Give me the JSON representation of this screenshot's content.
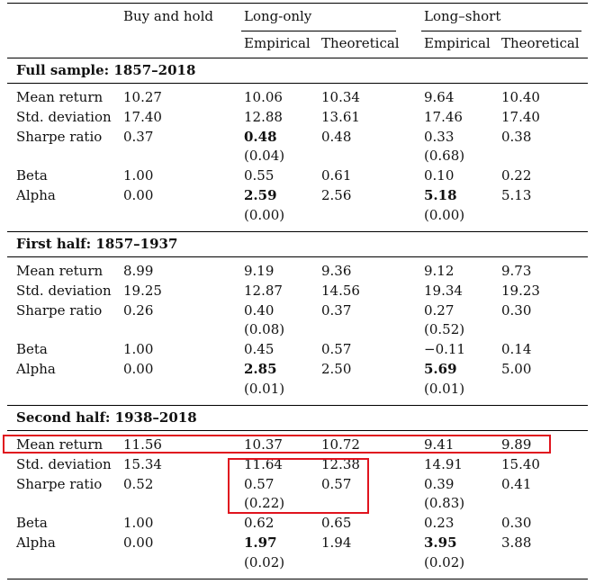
{
  "header": {
    "buy_hold": "Buy and hold",
    "long_only": "Long-only",
    "long_short": "Long–short",
    "empirical": "Empirical",
    "theoretical": "Theoretical"
  },
  "sections": [
    {
      "title": "Full sample: 1857–2018",
      "rows": [
        [
          "Mean return",
          "10.27",
          "10.06",
          "10.34",
          "9.64",
          "10.40"
        ],
        [
          "Std. deviation",
          "17.40",
          "12.88",
          "13.61",
          "17.46",
          "17.40"
        ],
        [
          "Sharpe ratio",
          "0.37",
          "0.48",
          "0.48",
          "0.33",
          "0.38"
        ],
        [
          "",
          "",
          "(0.04)",
          "",
          "(0.68)",
          ""
        ],
        [
          "Beta",
          "1.00",
          "0.55",
          "0.61",
          "0.10",
          "0.22"
        ],
        [
          "Alpha",
          "0.00",
          "2.59",
          "2.56",
          "5.18",
          "5.13"
        ],
        [
          "",
          "",
          "(0.00)",
          "",
          "(0.00)",
          ""
        ]
      ]
    },
    {
      "title": "First half: 1857–1937",
      "rows": [
        [
          "Mean return",
          "8.99",
          "9.19",
          "9.36",
          "9.12",
          "9.73"
        ],
        [
          "Std. deviation",
          "19.25",
          "12.87",
          "14.56",
          "19.34",
          "19.23"
        ],
        [
          "Sharpe ratio",
          "0.26",
          "0.40",
          "0.37",
          "0.27",
          "0.30"
        ],
        [
          "",
          "",
          "(0.08)",
          "",
          "(0.52)",
          ""
        ],
        [
          "Beta",
          "1.00",
          "0.45",
          "0.57",
          "−0.11",
          "0.14"
        ],
        [
          "Alpha",
          "0.00",
          "2.85",
          "2.50",
          "5.69",
          "5.00"
        ],
        [
          "",
          "",
          "(0.01)",
          "",
          "(0.01)",
          ""
        ]
      ]
    },
    {
      "title": "Second half: 1938–2018",
      "rows": [
        [
          "Mean return",
          "11.56",
          "10.37",
          "10.72",
          "9.41",
          "9.89"
        ],
        [
          "Std. deviation",
          "15.34",
          "11.64",
          "12.38",
          "14.91",
          "15.40"
        ],
        [
          "Sharpe ratio",
          "0.52",
          "0.57",
          "0.57",
          "0.39",
          "0.41"
        ],
        [
          "",
          "",
          "(0.22)",
          "",
          "(0.83)",
          ""
        ],
        [
          "Beta",
          "1.00",
          "0.62",
          "0.65",
          "0.23",
          "0.30"
        ],
        [
          "Alpha",
          "0.00",
          "1.97",
          "1.94",
          "3.95",
          "3.88"
        ],
        [
          "",
          "",
          "(0.02)",
          "",
          "(0.02)",
          ""
        ]
      ]
    }
  ]
}
